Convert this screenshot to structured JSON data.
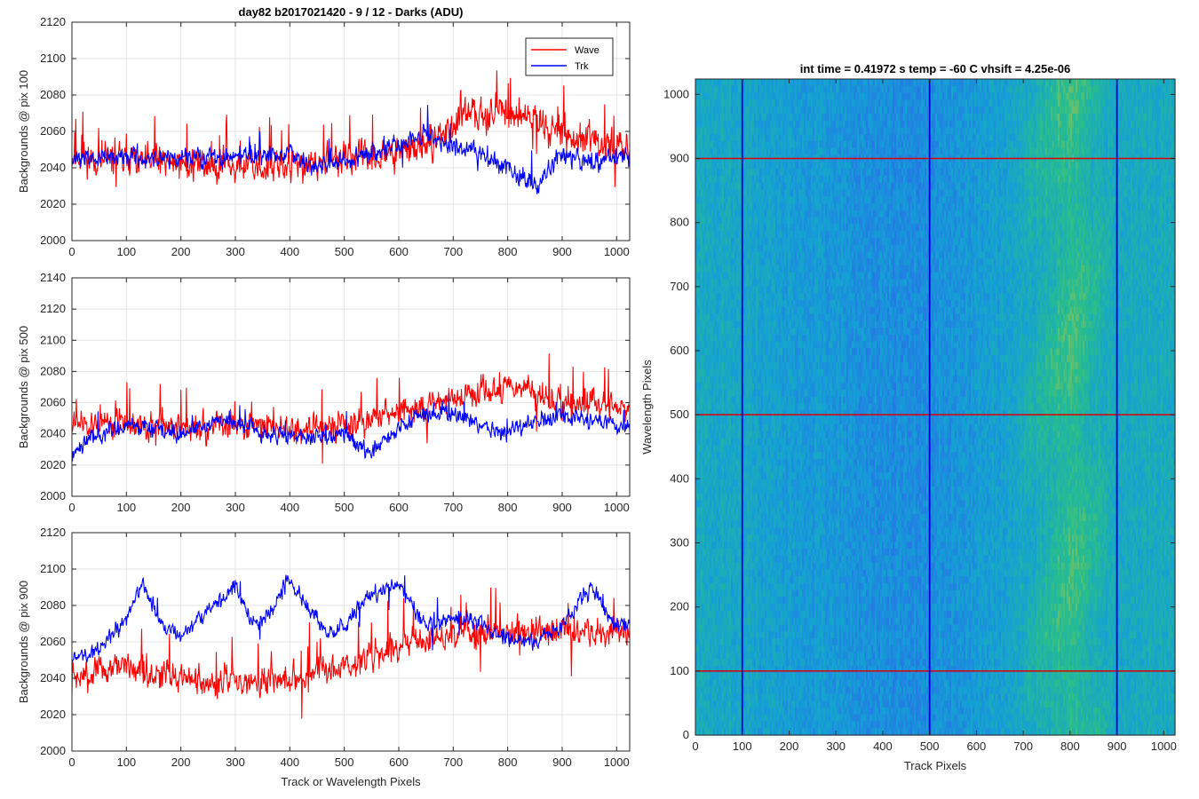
{
  "chart_data": [
    {
      "type": "line",
      "title": "day82 b2017021420 - 9 / 12 - Darks (ADU)",
      "xlabel": "",
      "ylabel": "Backgrounds @ pix 100",
      "xlim": [
        0,
        1024
      ],
      "ylim": [
        2000,
        2120
      ],
      "xticks": [
        0,
        100,
        200,
        300,
        400,
        500,
        600,
        700,
        800,
        900,
        1000
      ],
      "yticks": [
        2000,
        2020,
        2040,
        2060,
        2080,
        2100,
        2120
      ],
      "grid": true,
      "legend": "top-right",
      "series": [
        {
          "name": "Wave",
          "color": "#ff0000",
          "profile": [
            [
              0,
              2046
            ],
            [
              100,
              2044
            ],
            [
              200,
              2043
            ],
            [
              300,
              2041
            ],
            [
              400,
              2040
            ],
            [
              500,
              2045
            ],
            [
              600,
              2048
            ],
            [
              650,
              2052
            ],
            [
              700,
              2063
            ],
            [
              750,
              2072
            ],
            [
              800,
              2070
            ],
            [
              850,
              2068
            ],
            [
              900,
              2058
            ],
            [
              950,
              2054
            ],
            [
              1024,
              2052
            ]
          ],
          "amplitude": 10,
          "spikes": 0.05,
          "seed": 11
        },
        {
          "name": "Trk",
          "color": "#0000ff",
          "profile": [
            [
              0,
              2045
            ],
            [
              100,
              2046
            ],
            [
              200,
              2045
            ],
            [
              300,
              2046
            ],
            [
              350,
              2048
            ],
            [
              400,
              2047
            ],
            [
              450,
              2040
            ],
            [
              500,
              2044
            ],
            [
              550,
              2049
            ],
            [
              600,
              2053
            ],
            [
              650,
              2058
            ],
            [
              700,
              2052
            ],
            [
              750,
              2048
            ],
            [
              800,
              2040
            ],
            [
              850,
              2030
            ],
            [
              900,
              2048
            ],
            [
              950,
              2044
            ],
            [
              1024,
              2045
            ]
          ],
          "amplitude": 6,
          "spikes": 0.02,
          "seed": 12
        }
      ]
    },
    {
      "type": "line",
      "title": "",
      "xlabel": "",
      "ylabel": "Backgrounds @ pix 500",
      "xlim": [
        0,
        1024
      ],
      "ylim": [
        2000,
        2140
      ],
      "xticks": [
        0,
        100,
        200,
        300,
        400,
        500,
        600,
        700,
        800,
        900,
        1000
      ],
      "yticks": [
        2000,
        2020,
        2040,
        2060,
        2080,
        2100,
        2120,
        2140
      ],
      "grid": true,
      "legend": "none",
      "series": [
        {
          "name": "Wave",
          "color": "#ff0000",
          "profile": [
            [
              0,
              2048
            ],
            [
              100,
              2046
            ],
            [
              200,
              2044
            ],
            [
              300,
              2045
            ],
            [
              400,
              2043
            ],
            [
              500,
              2046
            ],
            [
              600,
              2053
            ],
            [
              650,
              2057
            ],
            [
              700,
              2062
            ],
            [
              750,
              2068
            ],
            [
              800,
              2070
            ],
            [
              850,
              2064
            ],
            [
              900,
              2060
            ],
            [
              950,
              2058
            ],
            [
              1024,
              2055
            ]
          ],
          "amplitude": 10,
          "spikes": 0.05,
          "seed": 21
        },
        {
          "name": "Trk",
          "color": "#0000ff",
          "profile": [
            [
              0,
              2025
            ],
            [
              30,
              2038
            ],
            [
              100,
              2046
            ],
            [
              200,
              2040
            ],
            [
              280,
              2050
            ],
            [
              350,
              2040
            ],
            [
              450,
              2038
            ],
            [
              500,
              2040
            ],
            [
              550,
              2028
            ],
            [
              600,
              2045
            ],
            [
              650,
              2052
            ],
            [
              700,
              2054
            ],
            [
              750,
              2045
            ],
            [
              800,
              2040
            ],
            [
              850,
              2048
            ],
            [
              900,
              2053
            ],
            [
              950,
              2049
            ],
            [
              1024,
              2045
            ]
          ],
          "amplitude": 6,
          "spikes": 0.02,
          "seed": 22
        }
      ]
    },
    {
      "type": "line",
      "title": "",
      "xlabel": "Track or Wavelength Pixels",
      "ylabel": "Backgrounds @ pix 900",
      "xlim": [
        0,
        1024
      ],
      "ylim": [
        2000,
        2120
      ],
      "xticks": [
        0,
        100,
        200,
        300,
        400,
        500,
        600,
        700,
        800,
        900,
        1000
      ],
      "yticks": [
        2000,
        2020,
        2040,
        2060,
        2080,
        2100,
        2120
      ],
      "grid": true,
      "legend": "none",
      "series": [
        {
          "name": "Wave",
          "color": "#ff0000",
          "profile": [
            [
              0,
              2040
            ],
            [
              100,
              2046
            ],
            [
              200,
              2040
            ],
            [
              300,
              2038
            ],
            [
              400,
              2040
            ],
            [
              500,
              2046
            ],
            [
              550,
              2052
            ],
            [
              600,
              2058
            ],
            [
              700,
              2064
            ],
            [
              800,
              2066
            ],
            [
              900,
              2066
            ],
            [
              1024,
              2064
            ]
          ],
          "amplitude": 9,
          "spikes": 0.05,
          "seed": 31
        },
        {
          "name": "Trk",
          "color": "#0000ff",
          "profile": [
            [
              0,
              2050
            ],
            [
              50,
              2056
            ],
            [
              100,
              2072
            ],
            [
              130,
              2092
            ],
            [
              160,
              2072
            ],
            [
              200,
              2062
            ],
            [
              250,
              2078
            ],
            [
              300,
              2090
            ],
            [
              330,
              2070
            ],
            [
              360,
              2074
            ],
            [
              400,
              2094
            ],
            [
              430,
              2080
            ],
            [
              470,
              2064
            ],
            [
              500,
              2068
            ],
            [
              540,
              2084
            ],
            [
              600,
              2092
            ],
            [
              650,
              2068
            ],
            [
              700,
              2074
            ],
            [
              750,
              2070
            ],
            [
              800,
              2062
            ],
            [
              850,
              2060
            ],
            [
              900,
              2068
            ],
            [
              950,
              2090
            ],
            [
              1000,
              2068
            ],
            [
              1024,
              2070
            ]
          ],
          "amplitude": 5,
          "spikes": 0.01,
          "seed": 32
        }
      ]
    },
    {
      "type": "heatmap",
      "title": "int time = 0.41972 s    temp = -60 C    vhsift = 4.25e-06",
      "xlabel": "Track Pixels",
      "ylabel": "Wavelength Pixels",
      "xlim": [
        0,
        1024
      ],
      "ylim": [
        0,
        1024
      ],
      "xticks": [
        0,
        100,
        200,
        300,
        400,
        500,
        600,
        700,
        800,
        900,
        1000
      ],
      "yticks": [
        0,
        100,
        200,
        300,
        400,
        500,
        600,
        700,
        800,
        900,
        1000
      ],
      "grid": false,
      "colormap": "parula",
      "column_profile": [
        [
          0,
          0.46
        ],
        [
          100,
          0.44
        ],
        [
          200,
          0.4
        ],
        [
          300,
          0.37
        ],
        [
          400,
          0.34
        ],
        [
          500,
          0.34
        ],
        [
          600,
          0.38
        ],
        [
          700,
          0.45
        ],
        [
          760,
          0.55
        ],
        [
          800,
          0.6
        ],
        [
          850,
          0.52
        ],
        [
          900,
          0.46
        ],
        [
          1024,
          0.47
        ]
      ],
      "noise": 0.06,
      "vertical_lines": {
        "color": "#0000dd",
        "x": [
          100,
          500,
          900
        ]
      },
      "horizontal_lines": {
        "color": "#dd0000",
        "y": [
          100,
          500,
          900
        ]
      }
    }
  ]
}
